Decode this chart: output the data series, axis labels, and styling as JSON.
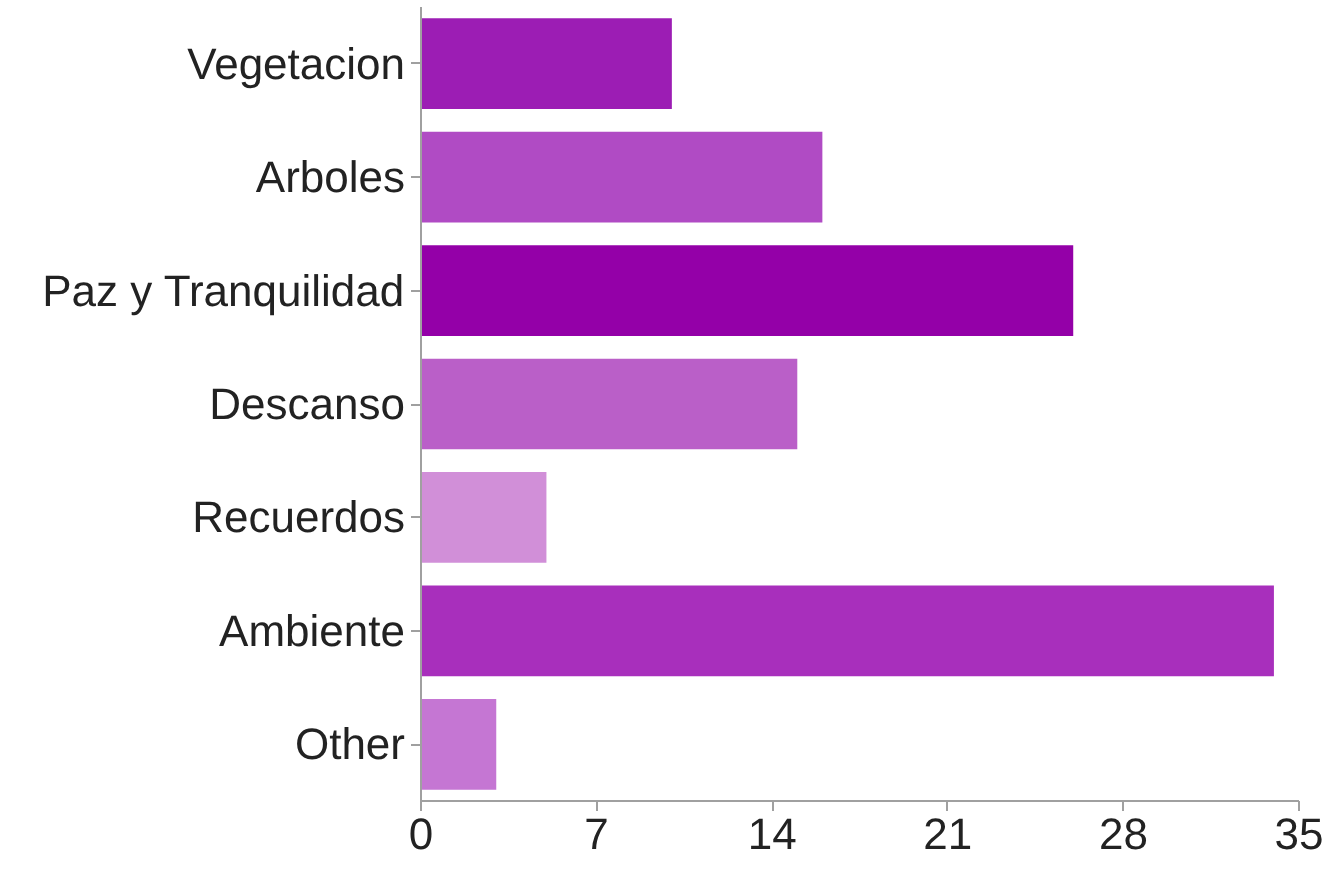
{
  "chart_data": {
    "type": "bar",
    "orientation": "horizontal",
    "categories": [
      "Vegetacion",
      "Arboles",
      "Paz y Tranquilidad",
      "Descanso",
      "Recuerdos",
      "Ambiente",
      "Other"
    ],
    "values": [
      10,
      16,
      26,
      15,
      5,
      34,
      3
    ],
    "colors": [
      "#9c1db4",
      "#b04bc4",
      "#9400a8",
      "#ba5fc8",
      "#d18fd8",
      "#a82fbc",
      "#c576d3"
    ],
    "xlim": [
      0,
      35
    ],
    "xticks": [
      0,
      7,
      14,
      21,
      28,
      35
    ],
    "grid": false
  }
}
